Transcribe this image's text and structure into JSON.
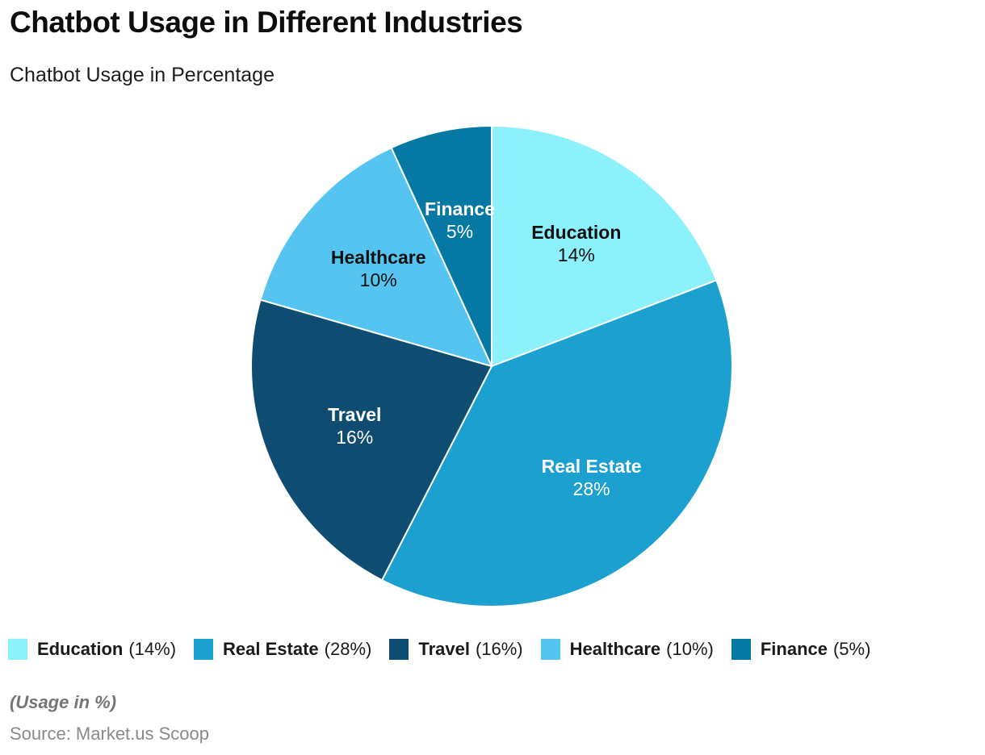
{
  "page": {
    "title": "Chatbot Usage in Different Industries",
    "subtitle": "Chatbot Usage in Percentage"
  },
  "chart_data": {
    "type": "pie",
    "title": "Chatbot Usage in Different Industries",
    "subtitle": "Chatbot Usage in Percentage",
    "unit": "%",
    "direction": "clockwise",
    "start_angle_deg": 0,
    "legend_position": "bottom",
    "slices": [
      {
        "label": "Education",
        "value": 14,
        "pct_text": "14%",
        "legend_text": "(14%)",
        "color": "#8DF1FC",
        "label_color": "#111111"
      },
      {
        "label": "Real Estate",
        "value": 28,
        "pct_text": "28%",
        "legend_text": "(28%)",
        "color": "#1CA0CF",
        "label_color": "#FFFFFF"
      },
      {
        "label": "Travel",
        "value": 16,
        "pct_text": "16%",
        "legend_text": "(16%)",
        "color": "#0E4C72",
        "label_color": "#FFFFFF"
      },
      {
        "label": "Healthcare",
        "value": 10,
        "pct_text": "10%",
        "legend_text": "(10%)",
        "color": "#55C4F1",
        "label_color": "#111111"
      },
      {
        "label": "Finance",
        "value": 5,
        "pct_text": "5%",
        "legend_text": "(5%)",
        "color": "#0578A4",
        "label_color": "#FFFFFF"
      }
    ]
  },
  "footer": {
    "note": "(Usage in %)",
    "source": "Source: Market.us Scoop"
  }
}
